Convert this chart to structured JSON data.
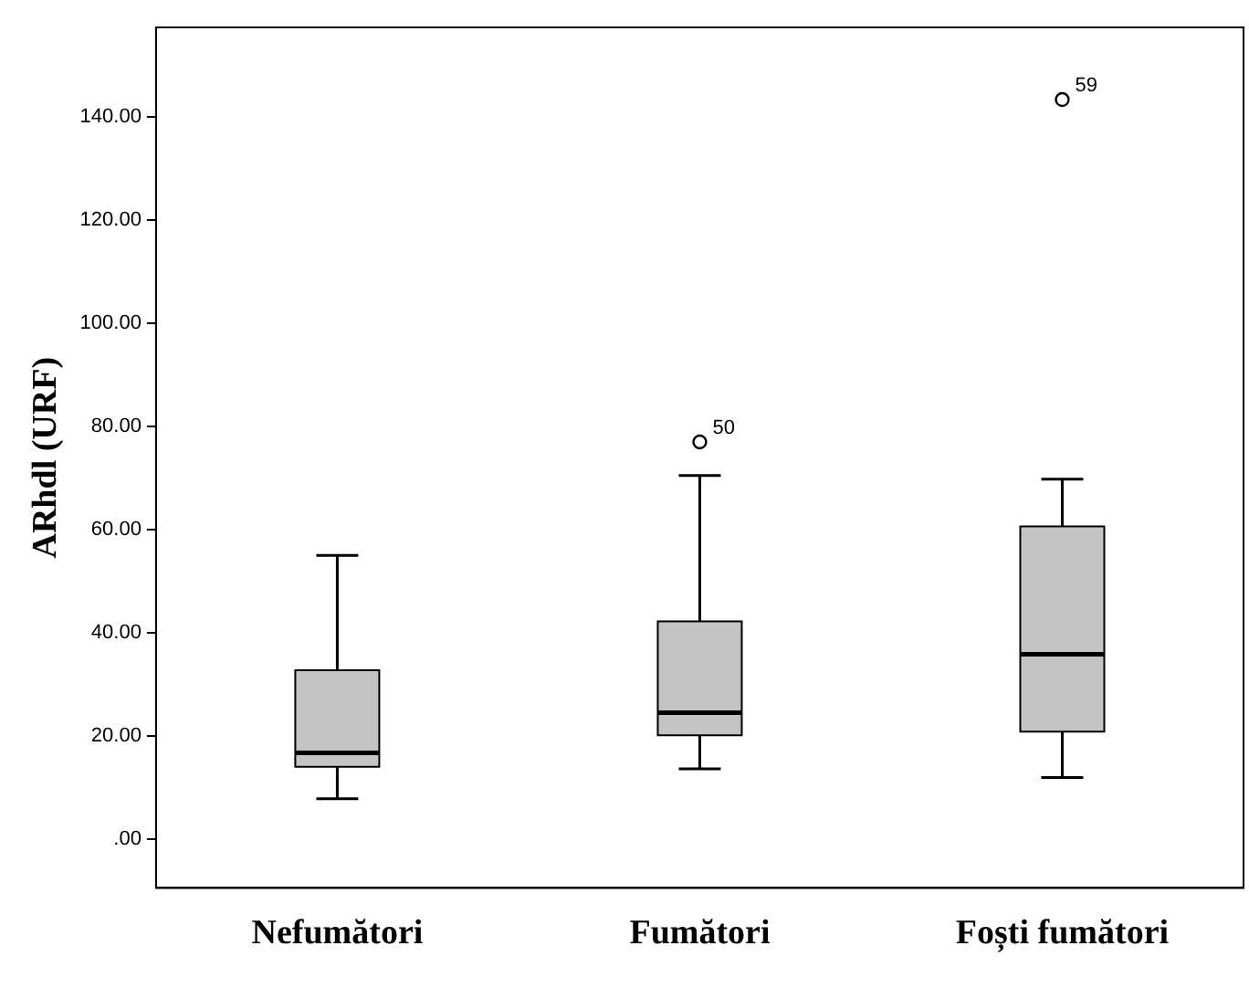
{
  "chart_data": {
    "type": "box",
    "ylabel": "ARhdl (URF)",
    "categories": [
      "Nefumători",
      "Fumători",
      "Foști fumători"
    ],
    "boxes": [
      {
        "low": 7.8,
        "q1": 14,
        "median": 16.7,
        "q3": 32.7,
        "high": 55
      },
      {
        "low": 13.6,
        "q1": 20.1,
        "median": 24.5,
        "q3": 42.2,
        "high": 70.5,
        "outliers": [
          77
        ]
      },
      {
        "low": 11.9,
        "q1": 20.8,
        "median": 35.8,
        "q3": 60.6,
        "high": 69.8,
        "outliers": [
          143.4
        ]
      }
    ],
    "ylim": [
      -9.5,
      157.4
    ],
    "yticks": [
      {
        "value": 0,
        "label": ".00"
      },
      {
        "value": 20,
        "label": "20.00"
      },
      {
        "value": 40,
        "label": "40.00"
      },
      {
        "value": 60,
        "label": "60.00"
      },
      {
        "value": 80,
        "label": "80.00"
      },
      {
        "value": 100,
        "label": "100.00"
      },
      {
        "value": 120,
        "label": "120.00"
      },
      {
        "value": 140,
        "label": "140.00"
      }
    ],
    "annotations": [
      "50",
      "59"
    ],
    "color": "#c4c4c4",
    "grid": false,
    "legend": false
  }
}
